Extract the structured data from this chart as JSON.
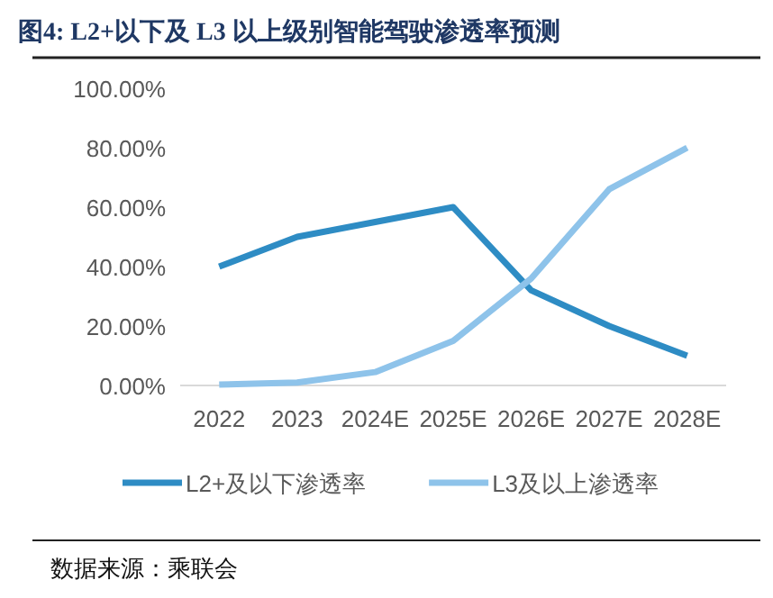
{
  "chart_data": {
    "type": "line",
    "title": "图4:  L2+以下及 L3 以上级别智能驾驶渗透率预测",
    "categories": [
      "2022",
      "2023",
      "2024E",
      "2025E",
      "2026E",
      "2027E",
      "2028E"
    ],
    "series": [
      {
        "name": "L2+及以下渗透率",
        "color": "#2e8cc4",
        "values": [
          40,
          50,
          55,
          60,
          32,
          20,
          10
        ]
      },
      {
        "name": "L3及以上渗透率",
        "color": "#8ec3ea",
        "values": [
          0.3,
          1,
          4.5,
          15,
          36,
          66,
          80
        ]
      }
    ],
    "ylim": [
      0,
      100
    ],
    "yticks": [
      {
        "value": 0,
        "label": "0.00%"
      },
      {
        "value": 20,
        "label": "20.00%"
      },
      {
        "value": 40,
        "label": "40.00%"
      },
      {
        "value": 60,
        "label": "60.00%"
      },
      {
        "value": 80,
        "label": "80.00%"
      },
      {
        "value": 100,
        "label": "100.00%"
      }
    ],
    "grid": false,
    "legend": "bottom",
    "marker": "none",
    "line_style": "solid",
    "annotations": [
      "数据来源：乘联会"
    ]
  }
}
